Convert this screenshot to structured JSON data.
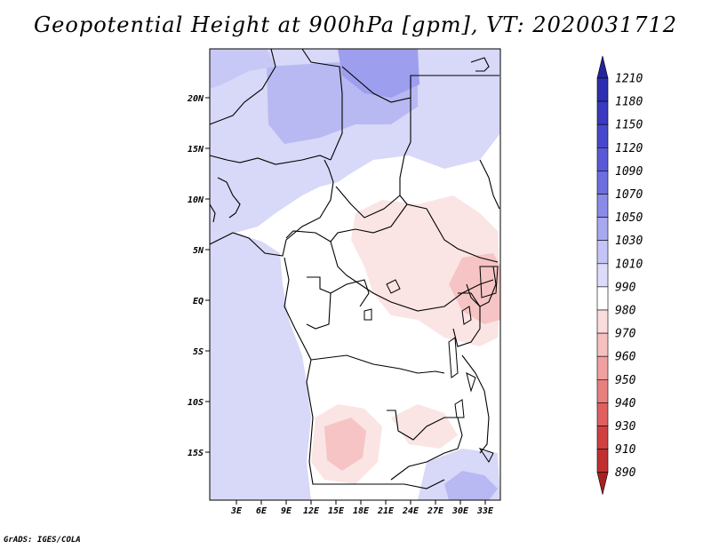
{
  "title": "Geopotential Height at 900hPa [gpm], VT: 2020031712",
  "credit": "GrADS: IGES/COLA",
  "map": {
    "lat_labels": [
      "20N",
      "15N",
      "10N",
      "5N",
      "EQ",
      "5S",
      "10S",
      "15S"
    ],
    "lon_labels": [
      "3E",
      "6E",
      "9E",
      "12E",
      "15E",
      "18E",
      "21E",
      "24E",
      "27E",
      "30E",
      "33E"
    ]
  },
  "colorbar": {
    "levels": [
      "1210",
      "1180",
      "1150",
      "1120",
      "1090",
      "1070",
      "1050",
      "1030",
      "1010",
      "990",
      "980",
      "970",
      "960",
      "950",
      "940",
      "930",
      "910",
      "890"
    ],
    "colors": [
      "#2323a0",
      "#2e2eb0",
      "#3a3ac0",
      "#4848cc",
      "#5a5ad8",
      "#6e6ee0",
      "#8a8ae8",
      "#a8a8f0",
      "#c4c4f6",
      "#dcdcfa",
      "#ffffff",
      "#fadcdc",
      "#f6c0c0",
      "#f0a0a0",
      "#e88080",
      "#e06060",
      "#d04040",
      "#c03030",
      "#a82020"
    ]
  }
}
